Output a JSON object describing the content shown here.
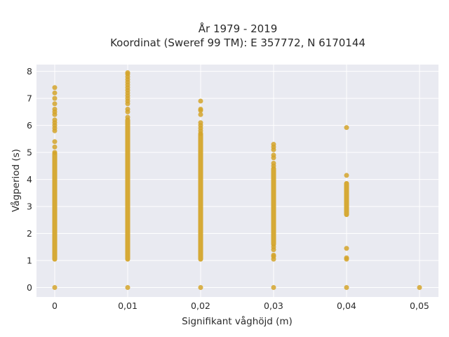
{
  "chart_data": {
    "type": "scatter",
    "title": "År 1979 - 2019",
    "subtitle": "Koordinat (Sweref 99 TM): E 357772, N 6170144",
    "xlabel": "Signifikant våghöjd (m)",
    "ylabel": "Vågperiod (s)",
    "xlim": [
      -0.0025,
      0.0526
    ],
    "ylim": [
      -0.35,
      8.25
    ],
    "x_ticks": [
      {
        "value": 0,
        "label": "0"
      },
      {
        "value": 0.01,
        "label": "0,01"
      },
      {
        "value": 0.02,
        "label": "0,02"
      },
      {
        "value": 0.03,
        "label": "0,03"
      },
      {
        "value": 0.04,
        "label": "0,04"
      },
      {
        "value": 0.05,
        "label": "0,05"
      }
    ],
    "y_ticks": [
      {
        "value": 0,
        "label": "0"
      },
      {
        "value": 1,
        "label": "1"
      },
      {
        "value": 2,
        "label": "2"
      },
      {
        "value": 3,
        "label": "3"
      },
      {
        "value": 4,
        "label": "4"
      },
      {
        "value": 5,
        "label": "5"
      },
      {
        "value": 6,
        "label": "6"
      },
      {
        "value": 7,
        "label": "7"
      },
      {
        "value": 8,
        "label": "8"
      }
    ],
    "grid": true,
    "colors": {
      "marker": "#d4a52b",
      "plot_bg": "#e9eaf1",
      "grid": "#ffffff"
    },
    "series": [
      {
        "bands": [
          {
            "x": 0,
            "y_from": 1.05,
            "y_to": 4.95
          },
          {
            "x": 0.01,
            "y_from": 1.05,
            "y_to": 6.2
          },
          {
            "x": 0.02,
            "y_from": 1.05,
            "y_to": 5.65
          },
          {
            "x": 0.03,
            "y_from": 1.6,
            "y_to": 4.4
          },
          {
            "x": 0.04,
            "y_from": 2.7,
            "y_to": 3.85
          }
        ],
        "points": [
          {
            "x": 0,
            "y": 0
          },
          {
            "x": 0,
            "y": 5.0
          },
          {
            "x": 0,
            "y": 5.2
          },
          {
            "x": 0,
            "y": 5.4
          },
          {
            "x": 0,
            "y": 5.8
          },
          {
            "x": 0,
            "y": 5.9
          },
          {
            "x": 0,
            "y": 6.0
          },
          {
            "x": 0,
            "y": 6.1
          },
          {
            "x": 0,
            "y": 6.2
          },
          {
            "x": 0,
            "y": 6.4
          },
          {
            "x": 0,
            "y": 6.5
          },
          {
            "x": 0,
            "y": 6.6
          },
          {
            "x": 0,
            "y": 6.8
          },
          {
            "x": 0,
            "y": 7.0
          },
          {
            "x": 0,
            "y": 7.2
          },
          {
            "x": 0,
            "y": 7.4
          },
          {
            "x": 0.01,
            "y": 0
          },
          {
            "x": 0.01,
            "y": 6.3
          },
          {
            "x": 0.01,
            "y": 6.5
          },
          {
            "x": 0.01,
            "y": 6.6
          },
          {
            "x": 0.01,
            "y": 6.8
          },
          {
            "x": 0.01,
            "y": 6.9
          },
          {
            "x": 0.01,
            "y": 7.0
          },
          {
            "x": 0.01,
            "y": 7.1
          },
          {
            "x": 0.01,
            "y": 7.2
          },
          {
            "x": 0.01,
            "y": 7.3
          },
          {
            "x": 0.01,
            "y": 7.4
          },
          {
            "x": 0.01,
            "y": 7.5
          },
          {
            "x": 0.01,
            "y": 7.6
          },
          {
            "x": 0.01,
            "y": 7.7
          },
          {
            "x": 0.01,
            "y": 7.8
          },
          {
            "x": 0.01,
            "y": 7.9
          },
          {
            "x": 0.01,
            "y": 7.95
          },
          {
            "x": 0.02,
            "y": 0
          },
          {
            "x": 0.02,
            "y": 5.7
          },
          {
            "x": 0.02,
            "y": 5.8
          },
          {
            "x": 0.02,
            "y": 5.9
          },
          {
            "x": 0.02,
            "y": 6.0
          },
          {
            "x": 0.02,
            "y": 6.1
          },
          {
            "x": 0.02,
            "y": 6.4
          },
          {
            "x": 0.02,
            "y": 6.55
          },
          {
            "x": 0.02,
            "y": 6.6
          },
          {
            "x": 0.02,
            "y": 6.9
          },
          {
            "x": 0.03,
            "y": 0
          },
          {
            "x": 0.03,
            "y": 1.05
          },
          {
            "x": 0.03,
            "y": 1.15
          },
          {
            "x": 0.03,
            "y": 1.2
          },
          {
            "x": 0.03,
            "y": 1.4
          },
          {
            "x": 0.03,
            "y": 1.5
          },
          {
            "x": 0.03,
            "y": 4.5
          },
          {
            "x": 0.03,
            "y": 4.6
          },
          {
            "x": 0.03,
            "y": 4.8
          },
          {
            "x": 0.03,
            "y": 4.9
          },
          {
            "x": 0.03,
            "y": 5.1
          },
          {
            "x": 0.03,
            "y": 5.2
          },
          {
            "x": 0.03,
            "y": 5.3
          },
          {
            "x": 0.04,
            "y": 0
          },
          {
            "x": 0.04,
            "y": 1.05
          },
          {
            "x": 0.04,
            "y": 1.1
          },
          {
            "x": 0.04,
            "y": 1.45
          },
          {
            "x": 0.04,
            "y": 4.15
          },
          {
            "x": 0.04,
            "y": 5.92
          },
          {
            "x": 0.05,
            "y": 0
          }
        ]
      }
    ]
  }
}
